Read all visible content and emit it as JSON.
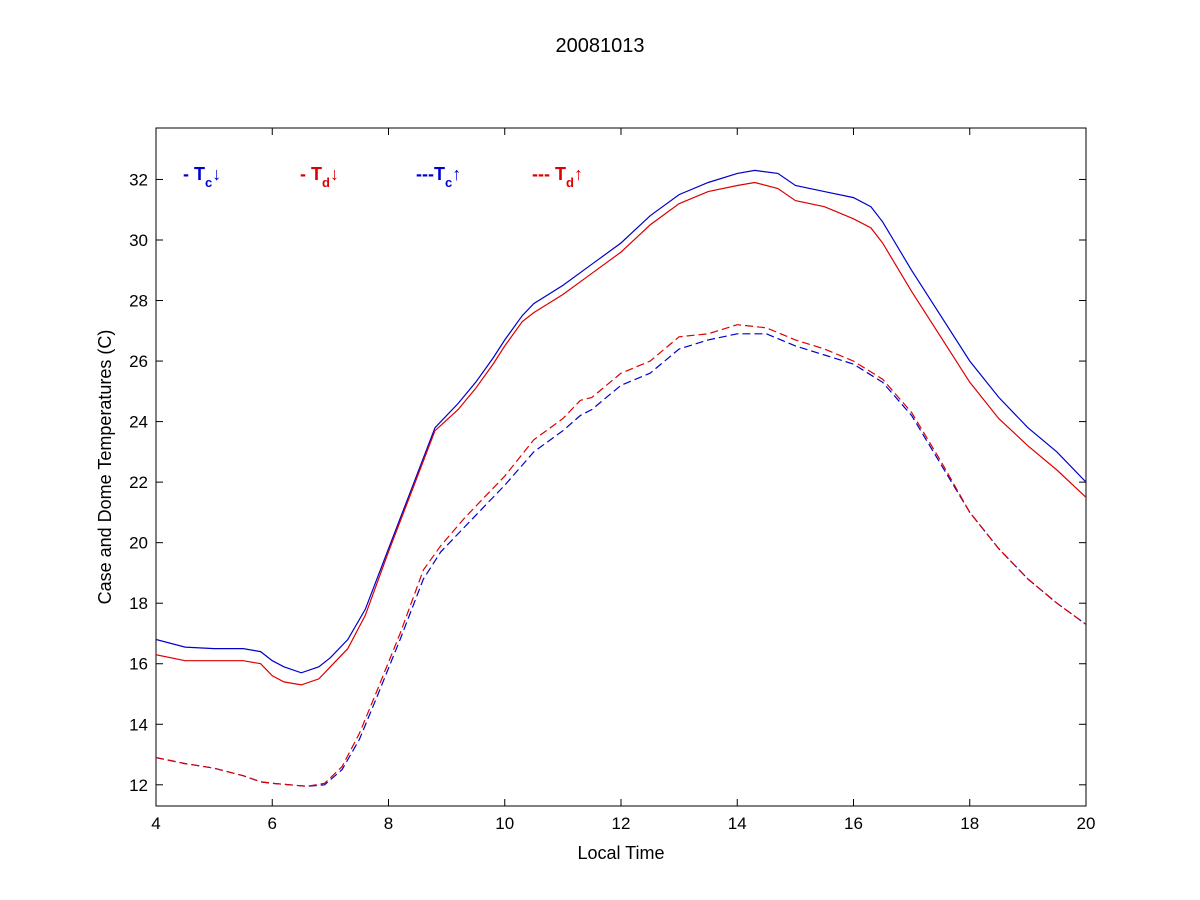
{
  "chart_data": {
    "type": "line",
    "title": "20081013",
    "xlabel": "Local Time",
    "ylabel": "Case and Dome Temperatures (C)",
    "xlim": [
      4,
      20
    ],
    "ylim": [
      11.3,
      33.7
    ],
    "xticks": [
      4,
      6,
      8,
      10,
      12,
      14,
      16,
      18,
      20
    ],
    "yticks": [
      12,
      14,
      16,
      18,
      20,
      22,
      24,
      26,
      28,
      30,
      32
    ],
    "grid": false,
    "legend_position": "top-left",
    "legend": [
      {
        "prefix": "- T",
        "sub": "c",
        "arrow": "↓",
        "color": "#0000cc"
      },
      {
        "prefix": "- T",
        "sub": "d",
        "arrow": "↓",
        "color": "#dd0000"
      },
      {
        "prefix": "---T",
        "sub": "c",
        "arrow": "↑",
        "color": "#0000cc"
      },
      {
        "prefix": "--- T",
        "sub": "d",
        "arrow": "↑",
        "color": "#dd0000"
      }
    ],
    "series": [
      {
        "color": "#0000cc",
        "dash": "solid",
        "x": [
          4.0,
          4.5,
          5.0,
          5.5,
          5.8,
          6.0,
          6.2,
          6.5,
          6.8,
          7.0,
          7.3,
          7.6,
          8.0,
          8.4,
          8.8,
          9.2,
          9.5,
          9.8,
          10.0,
          10.3,
          10.5,
          11.0,
          11.5,
          12.0,
          12.5,
          13.0,
          13.5,
          14.0,
          14.3,
          14.7,
          15.0,
          15.5,
          16.0,
          16.3,
          16.5,
          17.0,
          17.5,
          18.0,
          18.5,
          19.0,
          19.5,
          20.0
        ],
        "y": [
          16.8,
          16.55,
          16.5,
          16.5,
          16.4,
          16.1,
          15.9,
          15.7,
          15.9,
          16.2,
          16.8,
          17.8,
          19.8,
          21.8,
          23.8,
          24.6,
          25.3,
          26.1,
          26.7,
          27.5,
          27.9,
          28.5,
          29.2,
          29.9,
          30.8,
          31.5,
          31.9,
          32.2,
          32.3,
          32.2,
          31.8,
          31.6,
          31.4,
          31.1,
          30.6,
          29.0,
          27.5,
          26.0,
          24.8,
          23.8,
          23.0,
          22.0
        ]
      },
      {
        "color": "#dd0000",
        "dash": "solid",
        "x": [
          4.0,
          4.5,
          5.0,
          5.5,
          5.8,
          6.0,
          6.2,
          6.5,
          6.8,
          7.0,
          7.3,
          7.6,
          8.0,
          8.4,
          8.8,
          9.2,
          9.5,
          9.8,
          10.0,
          10.3,
          10.5,
          11.0,
          11.5,
          12.0,
          12.5,
          13.0,
          13.5,
          14.0,
          14.3,
          14.7,
          15.0,
          15.5,
          16.0,
          16.3,
          16.5,
          17.0,
          17.5,
          18.0,
          18.5,
          19.0,
          19.5,
          20.0
        ],
        "y": [
          16.3,
          16.1,
          16.1,
          16.1,
          16.0,
          15.6,
          15.4,
          15.3,
          15.5,
          15.9,
          16.5,
          17.6,
          19.7,
          21.7,
          23.7,
          24.4,
          25.1,
          25.9,
          26.5,
          27.3,
          27.6,
          28.2,
          28.9,
          29.6,
          30.5,
          31.2,
          31.6,
          31.8,
          31.9,
          31.7,
          31.3,
          31.1,
          30.7,
          30.4,
          29.9,
          28.3,
          26.8,
          25.3,
          24.1,
          23.2,
          22.4,
          21.5
        ]
      },
      {
        "color": "#0000cc",
        "dash": "dashed",
        "x": [
          4.0,
          4.5,
          5.0,
          5.5,
          5.8,
          6.0,
          6.3,
          6.6,
          6.9,
          7.2,
          7.5,
          7.8,
          8.2,
          8.6,
          8.9,
          9.3,
          9.7,
          10.0,
          10.5,
          11.0,
          11.3,
          11.5,
          12.0,
          12.5,
          13.0,
          13.5,
          14.0,
          14.5,
          15.0,
          15.5,
          16.0,
          16.5,
          17.0,
          17.5,
          18.0,
          18.5,
          19.0,
          19.5,
          20.0
        ],
        "y": [
          12.9,
          12.7,
          12.55,
          12.3,
          12.1,
          12.05,
          12.0,
          11.95,
          12.0,
          12.5,
          13.5,
          14.9,
          16.8,
          18.8,
          19.7,
          20.5,
          21.3,
          21.9,
          23.0,
          23.7,
          24.2,
          24.4,
          25.2,
          25.6,
          26.4,
          26.7,
          26.9,
          26.9,
          26.5,
          26.2,
          25.9,
          25.3,
          24.2,
          22.6,
          21.0,
          19.8,
          18.8,
          18.0,
          17.3
        ]
      },
      {
        "color": "#dd0000",
        "dash": "dashed",
        "x": [
          4.0,
          4.5,
          5.0,
          5.5,
          5.8,
          6.0,
          6.3,
          6.6,
          6.9,
          7.2,
          7.5,
          7.8,
          8.2,
          8.6,
          8.9,
          9.3,
          9.7,
          10.0,
          10.5,
          11.0,
          11.3,
          11.5,
          12.0,
          12.5,
          13.0,
          13.5,
          14.0,
          14.5,
          15.0,
          15.5,
          16.0,
          16.5,
          17.0,
          17.5,
          18.0,
          18.5,
          19.0,
          19.5,
          20.0
        ],
        "y": [
          12.9,
          12.7,
          12.55,
          12.3,
          12.1,
          12.05,
          12.0,
          11.95,
          12.05,
          12.6,
          13.7,
          15.1,
          17.0,
          19.1,
          19.9,
          20.8,
          21.6,
          22.2,
          23.4,
          24.1,
          24.7,
          24.8,
          25.6,
          26.0,
          26.8,
          26.9,
          27.2,
          27.1,
          26.7,
          26.4,
          26.0,
          25.4,
          24.3,
          22.7,
          21.0,
          19.8,
          18.8,
          18.0,
          17.3
        ]
      }
    ]
  }
}
